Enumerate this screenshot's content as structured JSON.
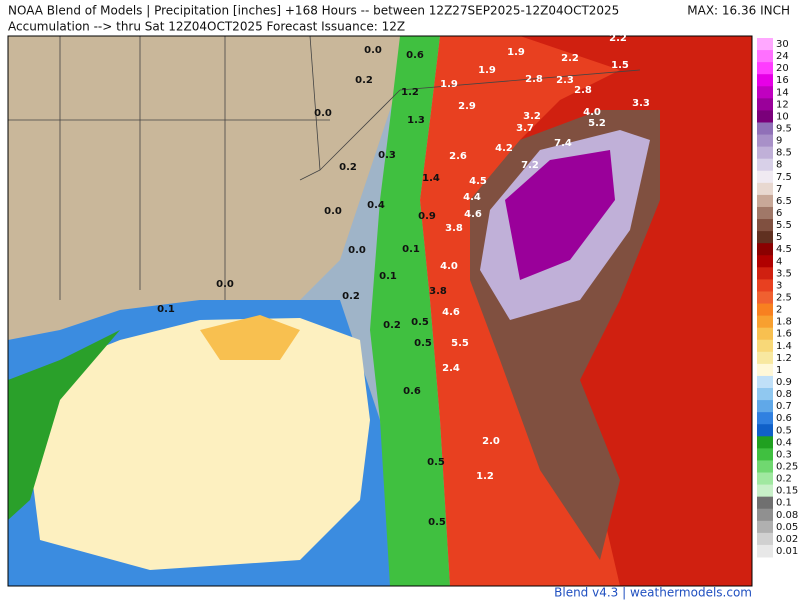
{
  "header": {
    "title": "NOAA Blend of Models | Precipitation [inches] +168 Hours -- between 12Z27SEP2025-12Z04OCT2025",
    "subtitle": "Accumulation --> thru Sat 12Z04OCT2025   Forecast Issuance: 12Z",
    "max": "MAX: 16.36 INCH"
  },
  "legend": {
    "labels": [
      "30",
      "24",
      "20",
      "16",
      "14",
      "12",
      "10",
      "9.5",
      "9",
      "8.5",
      "8",
      "7.5",
      "7",
      "6.5",
      "6",
      "5.5",
      "5",
      "4.5",
      "4",
      "3.5",
      "3",
      "2.5",
      "2",
      "1.8",
      "1.6",
      "1.4",
      "1.2",
      "1",
      "0.9",
      "0.8",
      "0.7",
      "0.6",
      "0.5",
      "0.4",
      "0.3",
      "0.25",
      "0.2",
      "0.15",
      "0.1",
      "0.08",
      "0.05",
      "0.02",
      "0.01"
    ],
    "colors": [
      "#ffa8ff",
      "#ff70ff",
      "#ff3cff",
      "#e600e6",
      "#c000c0",
      "#9a009a",
      "#7a007a",
      "#9070b8",
      "#a890c8",
      "#c0b0d8",
      "#d8d0e8",
      "#f0eaf2",
      "#e8d8d0",
      "#c8a898",
      "#a07868",
      "#805040",
      "#603020",
      "#8b0000",
      "#b00000",
      "#d02010",
      "#e84020",
      "#f06030",
      "#f88020",
      "#f8a030",
      "#f8c050",
      "#f8d878",
      "#f8e8a0",
      "#fff8d8",
      "#c0e0f8",
      "#90c8f0",
      "#60a8e8",
      "#3080e0",
      "#1060c8",
      "#20a020",
      "#40c040",
      "#70d870",
      "#a0e8a0",
      "#c8f0c8",
      "#707070",
      "#909090",
      "#b0b0b0",
      "#d0d0d0",
      "#e8e8e8"
    ]
  },
  "map_labels": [
    "0.0",
    "0.6",
    "1.9",
    "2.2",
    "2.2",
    "1.5",
    "0.2",
    "1.2",
    "1.9",
    "1.9",
    "2.8",
    "2.3",
    "2.8",
    "0.0",
    "2.9",
    "3.2",
    "4.0",
    "3.3",
    "1.3",
    "3.7",
    "5.2",
    "0.3",
    "4.2",
    "7.4",
    "2.6",
    "0.2",
    "7.2",
    "1.4",
    "4.5",
    "0.4",
    "4.4",
    "4.6",
    "0.0",
    "0.9",
    "3.8",
    "0.0",
    "0.1",
    "4.0",
    "0.1",
    "0.0",
    "3.8",
    "0.2",
    "0.1",
    "4.6",
    "0.5",
    "0.2",
    "5.5",
    "0.5",
    "2.4",
    "0.6",
    "2.0",
    "0.5",
    "1.2",
    "0.5"
  ],
  "footer": "Blend v4.3 | weathermodels.com"
}
